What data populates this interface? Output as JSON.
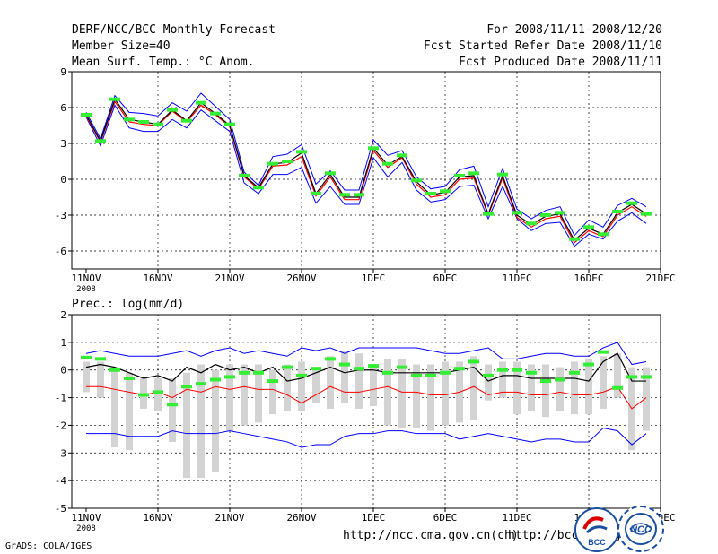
{
  "header": {
    "title": "DERF/NCC/BCC Monthly Forecast",
    "member_size": "Member Size=40",
    "variable": "Mean Surf. Temp.: °C Anom.",
    "forecast_period": "For 2008/11/11-2008/12/20",
    "started_date": "Fcst Started Refer Date 2008/11/10",
    "produced_date": "Fcst Produced Date 2008/11/11"
  },
  "footer": {
    "url1": "http://ncc.cma.gov.cn(ch)",
    "url2": "http://bcc.cma.gov.cn",
    "credit": "GrADS: COLA/IGES",
    "logo1_text": "BCC",
    "logo2_text": "NCC"
  },
  "colors": {
    "ensemble_min_max": "#0000ff",
    "ensemble_mean": "#000000",
    "ensemble_spread": "#ff0000",
    "member_marker": "#33ee33",
    "box": "#d3d3d3"
  },
  "chart_data": [
    {
      "type": "line",
      "title": "Mean Surf. Temp.: °C Anom.",
      "xlabel": "",
      "ylabel": "",
      "x_ticks": [
        "11NOV\n2008",
        "16NOV",
        "21NOV",
        "26NOV",
        "1DEC",
        "6DEC",
        "11DEC",
        "16DEC",
        "21DEC"
      ],
      "x_tick_days": [
        0,
        5,
        10,
        15,
        20,
        25,
        30,
        35,
        40
      ],
      "y_ticks": [
        -6,
        -3,
        0,
        3,
        6,
        9
      ],
      "ylim": [
        -7.5,
        9
      ],
      "xlim": [
        -1,
        40
      ],
      "grid": true,
      "days": [
        0,
        1,
        2,
        3,
        4,
        5,
        6,
        7,
        8,
        9,
        10,
        11,
        12,
        13,
        14,
        15,
        16,
        17,
        18,
        19,
        20,
        21,
        22,
        23,
        24,
        25,
        26,
        27,
        28,
        29,
        30,
        31,
        32,
        33,
        34,
        35,
        36,
        37,
        38,
        39
      ],
      "series": [
        {
          "name": "mean",
          "values": [
            5.4,
            3.2,
            6.7,
            5.0,
            4.8,
            4.6,
            5.8,
            4.9,
            6.4,
            5.5,
            4.5,
            0.3,
            -0.7,
            1.3,
            1.4,
            2.2,
            -1.2,
            0.4,
            -1.5,
            -1.5,
            2.6,
            1.2,
            1.9,
            -0.2,
            -1.3,
            -1.1,
            0.2,
            0.3,
            -2.9,
            0.3,
            -3.0,
            -3.8,
            -3.1,
            -2.9,
            -5.1,
            -4.1,
            -4.6,
            -2.8,
            -2.1,
            -2.9
          ]
        },
        {
          "name": "upper",
          "values": [
            5.6,
            3.4,
            7.0,
            5.6,
            5.5,
            5.3,
            6.4,
            5.7,
            7.2,
            6.1,
            5.0,
            0.6,
            -0.5,
            1.9,
            2.1,
            2.9,
            -0.4,
            0.7,
            -0.9,
            -0.9,
            3.3,
            2.0,
            2.4,
            0.2,
            -0.8,
            -0.6,
            0.8,
            1.1,
            -2.3,
            0.9,
            -2.5,
            -3.3,
            -2.6,
            -2.3,
            -4.7,
            -3.4,
            -4.0,
            -2.2,
            -1.6,
            -2.3
          ]
        },
        {
          "name": "lower",
          "values": [
            5.2,
            2.8,
            6.2,
            4.3,
            4.0,
            4.0,
            5.0,
            4.3,
            5.8,
            4.9,
            4.0,
            -0.3,
            -1.2,
            0.4,
            0.4,
            1.0,
            -2.0,
            -0.6,
            -2.1,
            -2.1,
            1.8,
            0.2,
            1.4,
            -0.9,
            -1.9,
            -1.7,
            -0.6,
            -0.5,
            -3.3,
            -0.6,
            -3.3,
            -4.3,
            -3.7,
            -3.6,
            -5.6,
            -4.6,
            -5.0,
            -3.5,
            -2.8,
            -3.7
          ]
        },
        {
          "name": "spread",
          "values": [
            5.3,
            3.1,
            6.5,
            4.8,
            4.6,
            4.5,
            5.7,
            4.8,
            6.2,
            5.4,
            4.4,
            0.2,
            -0.8,
            1.1,
            1.2,
            1.9,
            -1.4,
            0.2,
            -1.7,
            -1.7,
            2.4,
            1.0,
            1.8,
            -0.4,
            -1.5,
            -1.3,
            0.0,
            0.1,
            -3.0,
            0.1,
            -3.2,
            -4.0,
            -3.3,
            -3.1,
            -5.3,
            -4.3,
            -4.8,
            -3.0,
            -2.3,
            -3.1
          ]
        },
        {
          "name": "member",
          "values": [
            5.4,
            3.2,
            6.7,
            5.0,
            4.8,
            4.6,
            5.8,
            4.9,
            6.4,
            5.5,
            4.6,
            0.3,
            -0.7,
            1.3,
            1.5,
            2.3,
            -1.2,
            0.5,
            -1.3,
            -1.3,
            2.6,
            1.3,
            2.0,
            -0.1,
            -1.2,
            -1.0,
            0.3,
            0.5,
            -2.9,
            0.4,
            -2.8,
            -3.7,
            -3.0,
            -2.8,
            -5.0,
            -4.0,
            -4.6,
            -2.7,
            -2.0,
            -2.9
          ]
        }
      ]
    },
    {
      "type": "line",
      "title": "Prec.: log(mm/d)",
      "xlabel": "",
      "ylabel": "",
      "x_ticks": [
        "11NOV\n2008",
        "16NOV",
        "21NOV",
        "26NOV",
        "1DEC",
        "6DEC",
        "11DEC",
        "16DEC",
        "21DEC"
      ],
      "x_tick_days": [
        0,
        5,
        10,
        15,
        20,
        25,
        30,
        35,
        40
      ],
      "y_ticks": [
        -5,
        -4,
        -3,
        -2,
        -1,
        0,
        1,
        2
      ],
      "ylim": [
        -5,
        2
      ],
      "xlim": [
        -1,
        40
      ],
      "grid": true,
      "days": [
        0,
        1,
        2,
        3,
        4,
        5,
        6,
        7,
        8,
        9,
        10,
        11,
        12,
        13,
        14,
        15,
        16,
        17,
        18,
        19,
        20,
        21,
        22,
        23,
        24,
        25,
        26,
        27,
        28,
        29,
        30,
        31,
        32,
        33,
        34,
        35,
        36,
        37,
        38,
        39
      ],
      "series": [
        {
          "name": "upper",
          "values": [
            0.6,
            0.7,
            0.6,
            0.5,
            0.5,
            0.5,
            0.6,
            0.7,
            0.5,
            0.7,
            0.8,
            0.6,
            0.7,
            0.6,
            0.5,
            0.8,
            0.7,
            0.8,
            0.6,
            0.8,
            0.8,
            0.8,
            0.8,
            0.8,
            0.7,
            0.6,
            0.6,
            0.7,
            0.8,
            0.4,
            0.4,
            0.5,
            0.6,
            0.6,
            0.5,
            0.5,
            0.8,
            1.0,
            0.2,
            0.3
          ]
        },
        {
          "name": "mean",
          "values": [
            0.1,
            0.2,
            0.1,
            -0.1,
            -0.3,
            -0.2,
            -0.4,
            0.1,
            -0.1,
            0.2,
            0.0,
            0.1,
            -0.1,
            0.1,
            -0.4,
            -0.3,
            -0.1,
            0.1,
            -0.1,
            0.0,
            0.0,
            -0.1,
            -0.1,
            -0.1,
            -0.1,
            -0.1,
            0.0,
            0.1,
            -0.4,
            -0.2,
            -0.2,
            -0.3,
            -0.3,
            -0.3,
            -0.3,
            -0.4,
            0.3,
            0.6,
            -0.4,
            -0.4
          ]
        },
        {
          "name": "lower_red",
          "values": [
            -0.6,
            -0.6,
            -0.7,
            -0.8,
            -0.9,
            -0.8,
            -1.0,
            -0.7,
            -0.8,
            -0.6,
            -0.7,
            -0.6,
            -0.7,
            -0.7,
            -0.9,
            -1.2,
            -0.9,
            -0.6,
            -0.8,
            -0.8,
            -0.7,
            -0.6,
            -0.8,
            -0.8,
            -0.9,
            -0.9,
            -0.8,
            -0.6,
            -0.9,
            -0.8,
            -0.8,
            -0.9,
            -0.9,
            -0.8,
            -0.9,
            -0.9,
            -0.8,
            -0.6,
            -1.4,
            -1.0
          ]
        },
        {
          "name": "lower",
          "values": [
            -2.3,
            -2.3,
            -2.3,
            -2.4,
            -2.4,
            -2.4,
            -2.2,
            -2.3,
            -2.3,
            -2.3,
            -2.2,
            -2.3,
            -2.4,
            -2.5,
            -2.6,
            -2.8,
            -2.7,
            -2.7,
            -2.4,
            -2.3,
            -2.3,
            -2.2,
            -2.2,
            -2.3,
            -2.3,
            -2.3,
            -2.5,
            -2.4,
            -2.3,
            -2.4,
            -2.5,
            -2.6,
            -2.5,
            -2.5,
            -2.6,
            -2.6,
            -2.1,
            -2.2,
            -2.7,
            -2.3
          ]
        },
        {
          "name": "member",
          "values": [
            0.45,
            0.4,
            0.0,
            -0.3,
            -0.9,
            -0.8,
            -1.25,
            -0.6,
            -0.5,
            -0.35,
            -0.25,
            -0.1,
            -0.1,
            -0.4,
            0.1,
            -0.2,
            0.05,
            0.4,
            0.2,
            0.05,
            0.15,
            -0.1,
            0.1,
            -0.2,
            -0.2,
            -0.1,
            0.05,
            0.3,
            -0.2,
            0.0,
            0.0,
            -0.1,
            -0.4,
            -0.35,
            -0.1,
            0.2,
            0.65,
            -0.65,
            -0.25,
            -0.25
          ]
        },
        {
          "name": "box_top",
          "values": [
            0.3,
            0.3,
            0.1,
            -0.1,
            -0.3,
            -0.3,
            -0.3,
            -0.1,
            0.2,
            0.0,
            0.2,
            0.2,
            0.2,
            0.0,
            0.2,
            0.3,
            0.1,
            0.5,
            0.7,
            0.6,
            0.2,
            0.4,
            0.4,
            0.2,
            0.2,
            0.3,
            0.3,
            0.5,
            0.2,
            0.3,
            0.3,
            0.2,
            0.2,
            0.1,
            0.3,
            0.4,
            0.5,
            0.6,
            0.1,
            0.1
          ]
        },
        {
          "name": "box_bottom",
          "values": [
            -0.8,
            -1.0,
            -2.8,
            -2.9,
            -1.4,
            -1.5,
            -2.6,
            -3.9,
            -3.9,
            -3.7,
            -2.2,
            -2.0,
            -1.9,
            -1.6,
            -1.5,
            -1.5,
            -1.2,
            -1.4,
            -1.2,
            -1.4,
            -1.3,
            -2.0,
            -2.1,
            -2.1,
            -2.2,
            -2.0,
            -1.9,
            -1.8,
            -1.1,
            -1.0,
            -1.6,
            -1.5,
            -1.7,
            -1.5,
            -1.6,
            -1.6,
            -1.4,
            -1.0,
            -2.9,
            -2.2
          ]
        }
      ]
    }
  ]
}
